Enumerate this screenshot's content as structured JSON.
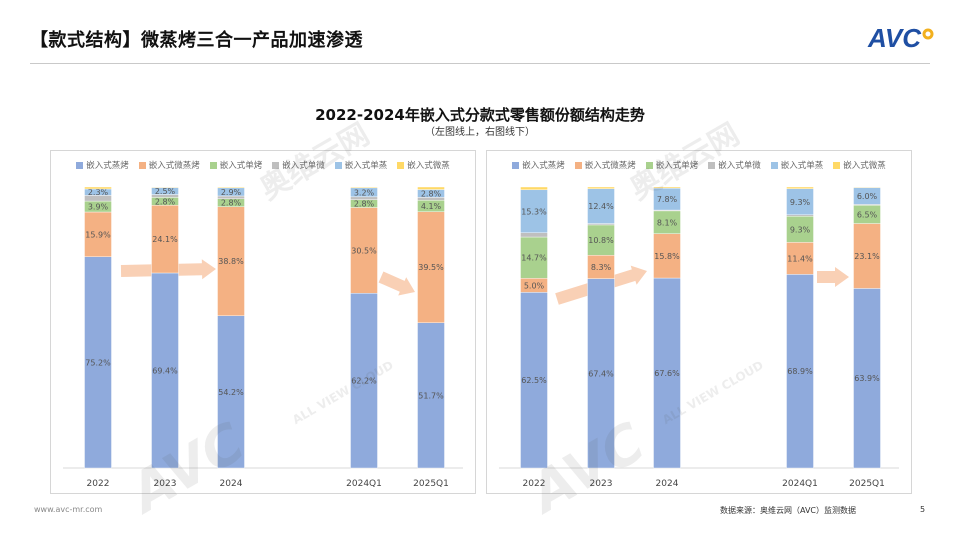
{
  "slide": {
    "title": "【款式结构】微蒸烤三合一产品加速渗透",
    "logo_text": "AVC",
    "footer_url": "www.avc-mr.com",
    "source": "数据来源：奥维云网（AVC）监测数据",
    "page_number": "5"
  },
  "chart_title": "2022-2024年嵌入式分款式零售额份额结构走势",
  "chart_subtitle": "（左图线上，右图线下）",
  "watermark": {
    "cn": "奥维云网",
    "en": "ALL VIEW CLOUD",
    "logo": "AVC"
  },
  "colors": {
    "steam_oven": "#8FAADC",
    "micro_steam_oven": "#F4B183",
    "oven": "#A9D18E",
    "micro": "#BFBFBF",
    "steamer": "#9DC3E6",
    "microsteam": "#FFD966",
    "arrow": "#F8CBAD"
  },
  "chart_data": [
    {
      "type": "bar",
      "stacked": "percent",
      "panel": "left",
      "categories": [
        "2022",
        "2023",
        "2024",
        "",
        "2024Q1",
        "2025Q1"
      ],
      "series": [
        {
          "name": "嵌入式蒸烤",
          "key": "steam_oven",
          "values": [
            75.2,
            69.4,
            54.2,
            null,
            62.2,
            51.7
          ],
          "labels": [
            "75.2%",
            "69.4%",
            "54.2%",
            "",
            "62.2%",
            "51.7%"
          ]
        },
        {
          "name": "嵌入式微蒸烤",
          "key": "micro_steam_oven",
          "values": [
            15.9,
            24.1,
            38.8,
            null,
            30.5,
            39.5
          ],
          "labels": [
            "15.9%",
            "24.1%",
            "38.8%",
            "",
            "30.5%",
            "39.5%"
          ]
        },
        {
          "name": "嵌入式单烤",
          "key": "oven",
          "values": [
            3.9,
            2.8,
            2.8,
            null,
            2.8,
            4.1
          ],
          "labels": [
            "3.9%",
            "2.8%",
            "2.8%",
            "",
            "2.8%",
            "4.1%"
          ]
        },
        {
          "name": "嵌入式单微",
          "key": "micro",
          "values": [
            2.0,
            1.0,
            1.0,
            null,
            1.0,
            1.0
          ],
          "labels": [
            "",
            "",
            "",
            "",
            "",
            ""
          ]
        },
        {
          "name": "嵌入式单蒸",
          "key": "steamer",
          "values": [
            2.3,
            2.5,
            2.9,
            null,
            3.2,
            2.8
          ],
          "labels": [
            "2.3%",
            "2.5%",
            "2.9%",
            "",
            "3.2%",
            "2.8%"
          ]
        },
        {
          "name": "嵌入式微蒸",
          "key": "microsteam",
          "values": [
            0.7,
            0.2,
            0.3,
            null,
            0.3,
            0.9
          ],
          "labels": [
            "",
            "",
            "",
            "",
            "",
            ""
          ]
        }
      ],
      "ylim": [
        0,
        100
      ]
    },
    {
      "type": "bar",
      "stacked": "percent",
      "panel": "right",
      "categories": [
        "2022",
        "2023",
        "2024",
        "",
        "2024Q1",
        "2025Q1"
      ],
      "series": [
        {
          "name": "嵌入式蒸烤",
          "key": "steam_oven",
          "values": [
            62.5,
            67.4,
            67.6,
            null,
            68.9,
            63.9
          ],
          "labels": [
            "62.5%",
            "67.4%",
            "67.6%",
            "",
            "68.9%",
            "63.9%"
          ]
        },
        {
          "name": "嵌入式微蒸烤",
          "key": "micro_steam_oven",
          "values": [
            5.0,
            8.3,
            15.8,
            null,
            11.4,
            23.1
          ],
          "labels": [
            "5.0%",
            "8.3%",
            "15.8%",
            "",
            "11.4%",
            "23.1%"
          ]
        },
        {
          "name": "嵌入式单烤",
          "key": "oven",
          "values": [
            14.7,
            10.8,
            8.1,
            null,
            9.3,
            6.5
          ],
          "labels": [
            "14.7%",
            "10.8%",
            "8.1%",
            "",
            "9.3%",
            "6.5%"
          ]
        },
        {
          "name": "嵌入式单微",
          "key": "micro",
          "values": [
            1.5,
            0.5,
            0.3,
            null,
            0.5,
            0.3
          ],
          "labels": [
            "",
            "",
            "",
            "",
            "",
            ""
          ]
        },
        {
          "name": "嵌入式单蒸",
          "key": "steamer",
          "values": [
            15.3,
            12.4,
            7.8,
            null,
            9.3,
            6.0
          ],
          "labels": [
            "15.3%",
            "12.4%",
            "7.8%",
            "",
            "9.3%",
            "6.0%"
          ]
        },
        {
          "name": "嵌入式微蒸",
          "key": "microsteam",
          "values": [
            1.0,
            0.6,
            0.4,
            null,
            0.6,
            0.2
          ],
          "labels": [
            "",
            "",
            "",
            "",
            "",
            ""
          ]
        }
      ],
      "ylim": [
        0,
        100
      ]
    }
  ]
}
